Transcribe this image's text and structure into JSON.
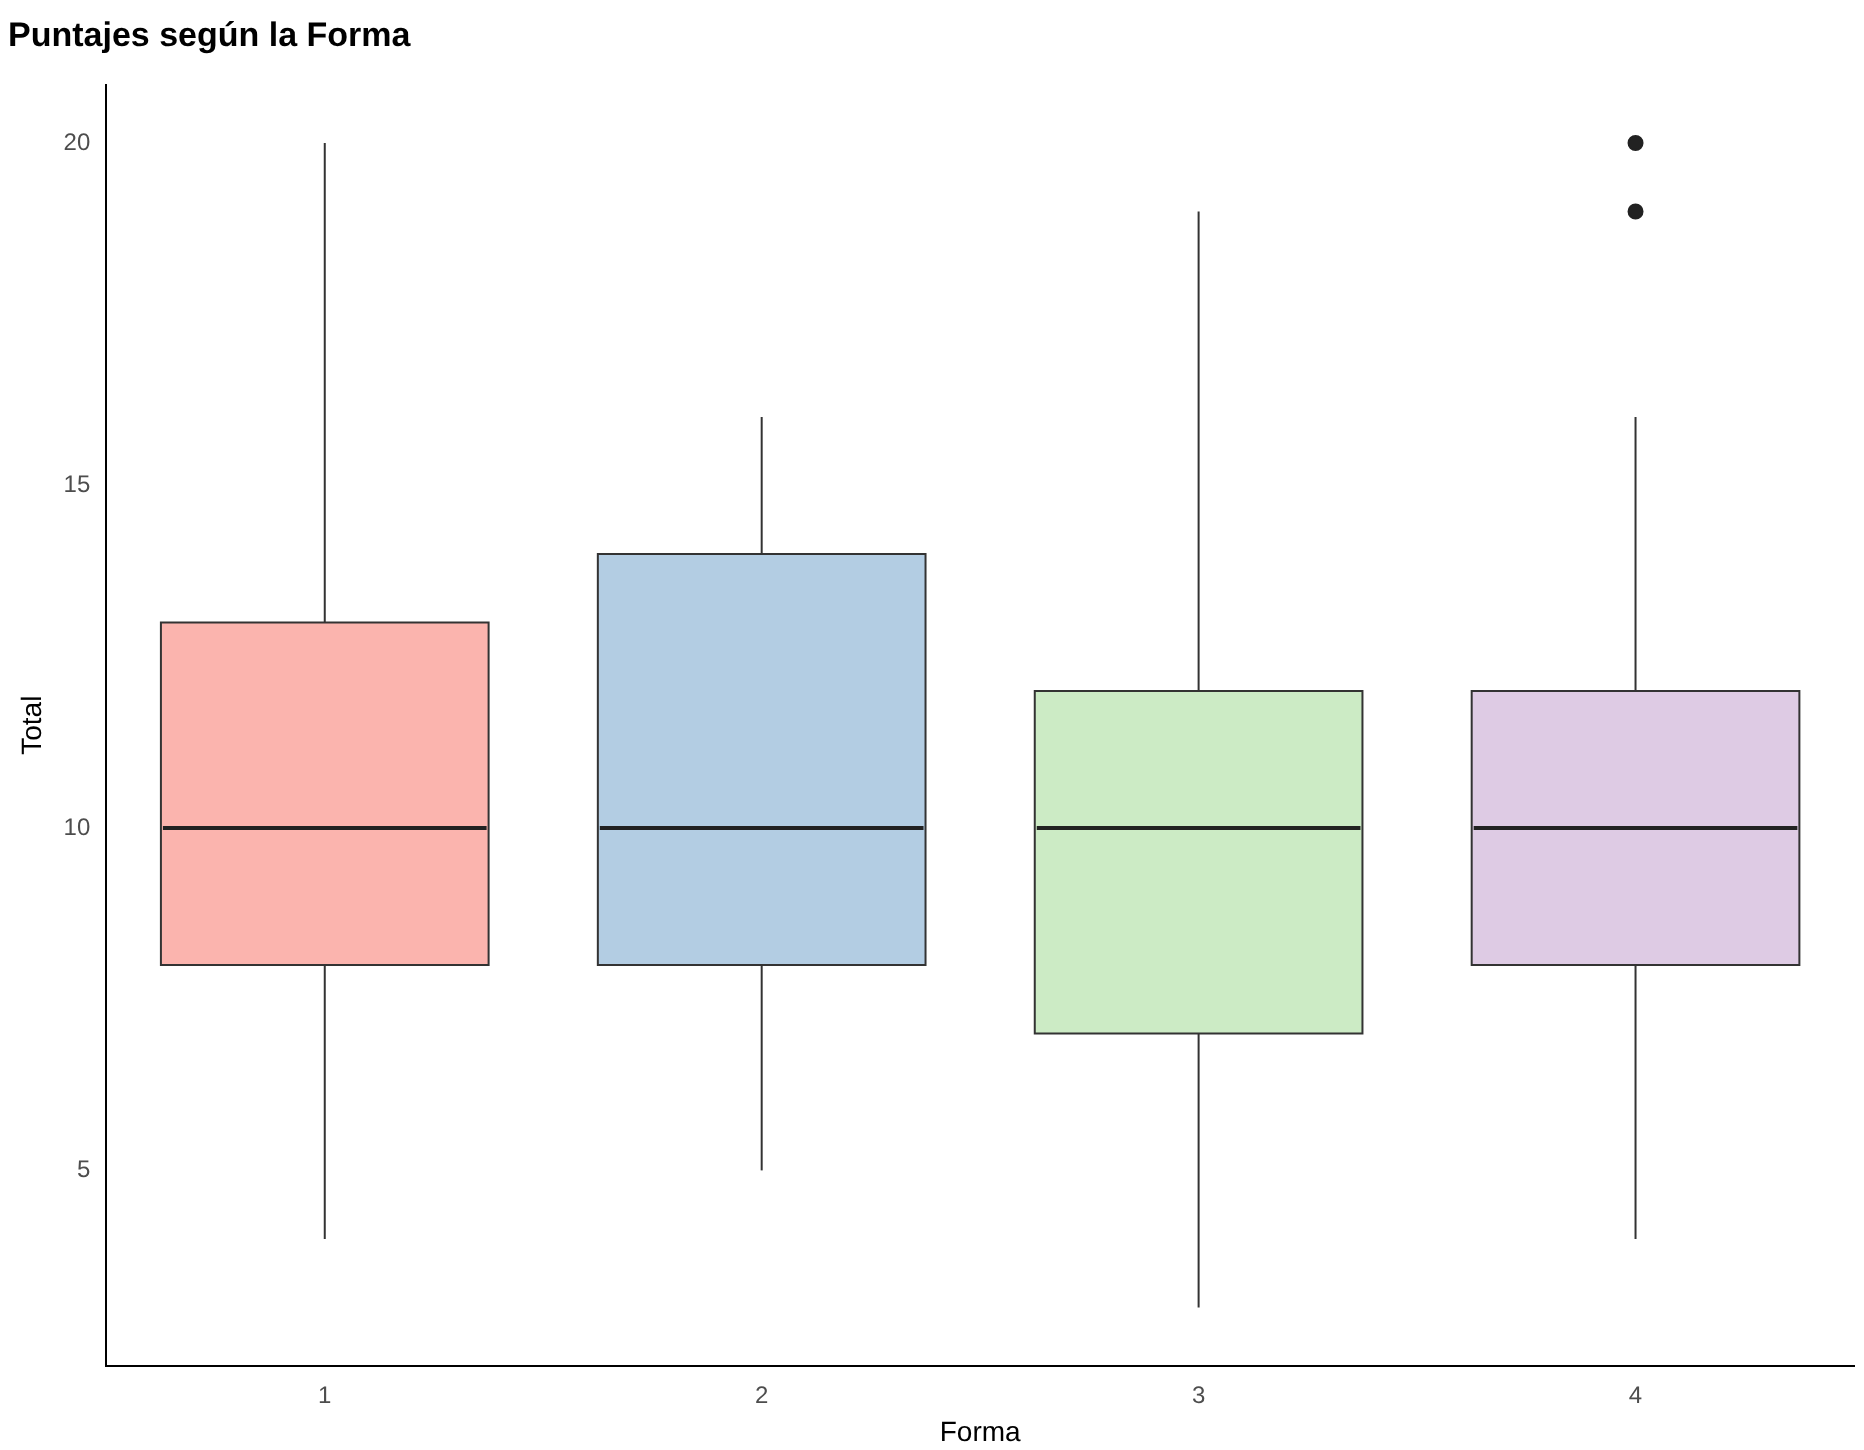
{
  "chart_data": {
    "type": "box",
    "title": "Puntajes según la Forma",
    "xlabel": "Forma",
    "ylabel": "Total",
    "categories": [
      "1",
      "2",
      "3",
      "4"
    ],
    "boxes": [
      {
        "low": 4,
        "q1": 8,
        "median": 10,
        "q3": 13,
        "high": 20
      },
      {
        "low": 5,
        "q1": 8,
        "median": 10,
        "q3": 14,
        "high": 16
      },
      {
        "low": 3,
        "q1": 7,
        "median": 10,
        "q3": 12,
        "high": 19
      },
      {
        "low": 4,
        "q1": 8,
        "median": 10,
        "q3": 12,
        "high": 16,
        "outliers": [
          19,
          20
        ]
      }
    ],
    "colors": [
      "#fbb4ae",
      "#b3cde3",
      "#ccebc5",
      "#decbe4"
    ],
    "ylim": [
      2.15,
      20.85
    ],
    "yticks": [
      5,
      10,
      15,
      20
    ],
    "grid": false,
    "legend": false
  }
}
